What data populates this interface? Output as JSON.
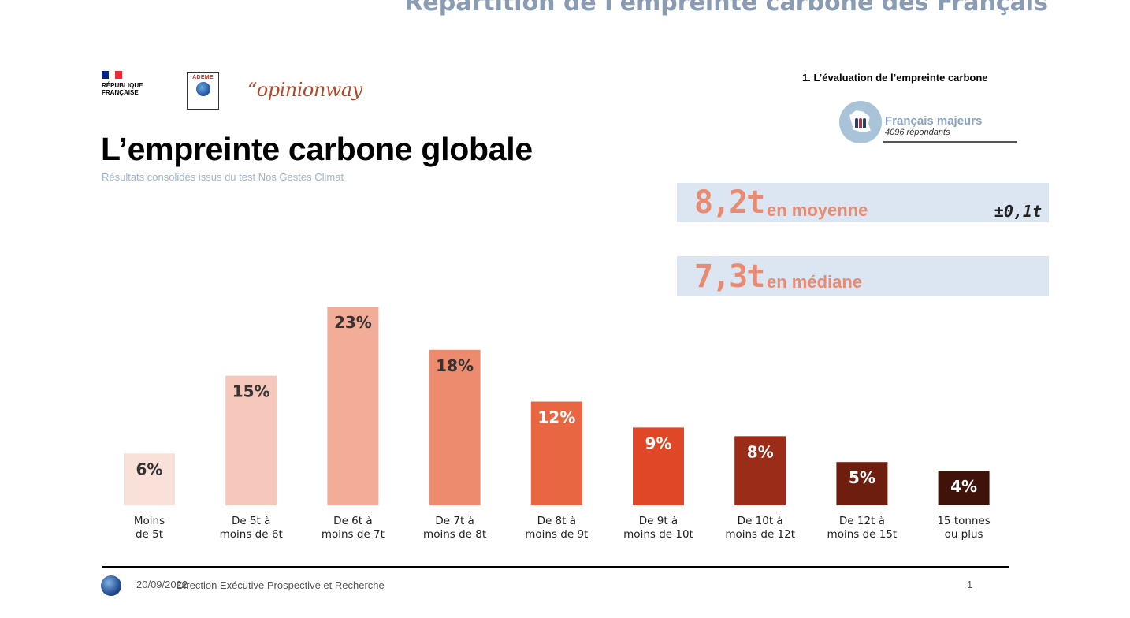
{
  "header": {
    "top_title": "Répartition de l'empreinte carbone des Français",
    "section_label": "1. L’évaluation de l’empreinte carbone"
  },
  "logos": {
    "rf_name_line1": "RÉPUBLIQUE",
    "rf_name_line2": "FRANÇAISE",
    "ademe_name": "ADEME",
    "opinionway": "“opinionway"
  },
  "respondents": {
    "title": "Français majeurs",
    "count": "4096 répondants"
  },
  "title": "L’empreinte carbone globale",
  "subtitle": "Résultats consolidés issus du test Nos Gestes Climat",
  "stats": {
    "mean_value": "8,2t",
    "mean_label": "en moyenne",
    "mean_margin": "±0,1t",
    "median_value": "7,3t",
    "median_label": "en médiane"
  },
  "colors": {
    "stat_accent": "#e98b72",
    "stat_box_bg": "#dce6f2"
  },
  "chart_data": {
    "type": "bar",
    "categories": [
      [
        "Moins",
        "de 5t"
      ],
      [
        "De 5t à",
        "moins de 6t"
      ],
      [
        "De 6t à",
        "moins de 7t"
      ],
      [
        "De 7t à",
        "moins de 8t"
      ],
      [
        "De 8t à",
        "moins de 9t"
      ],
      [
        "De 9t à",
        "moins de 10t"
      ],
      [
        "De 10t à",
        "moins de 12t"
      ],
      [
        "De 12t à",
        "moins de 15t"
      ],
      [
        "15 tonnes",
        "ou plus"
      ]
    ],
    "values": [
      6,
      15,
      23,
      18,
      12,
      9,
      8,
      5,
      4
    ],
    "value_labels": [
      "6%",
      "15%",
      "23%",
      "18%",
      "12%",
      "9%",
      "8%",
      "5%",
      "4%"
    ],
    "bar_colors": [
      "#f9e0d9",
      "#f6c7bb",
      "#f2ac97",
      "#ec8b6e",
      "#e86742",
      "#df4727",
      "#9b2c17",
      "#6d1e0f",
      "#3f130a"
    ],
    "label_colors": [
      "#333333",
      "#333333",
      "#333333",
      "#333333",
      "#ffffff",
      "#ffffff",
      "#ffffff",
      "#ffffff",
      "#ffffff"
    ],
    "ylim": [
      0,
      23
    ],
    "grid": false,
    "legend": "none"
  },
  "footer": {
    "date": "20/09/2022",
    "department": "Direction Exécutive Prospective et Recherche",
    "page": "1"
  }
}
